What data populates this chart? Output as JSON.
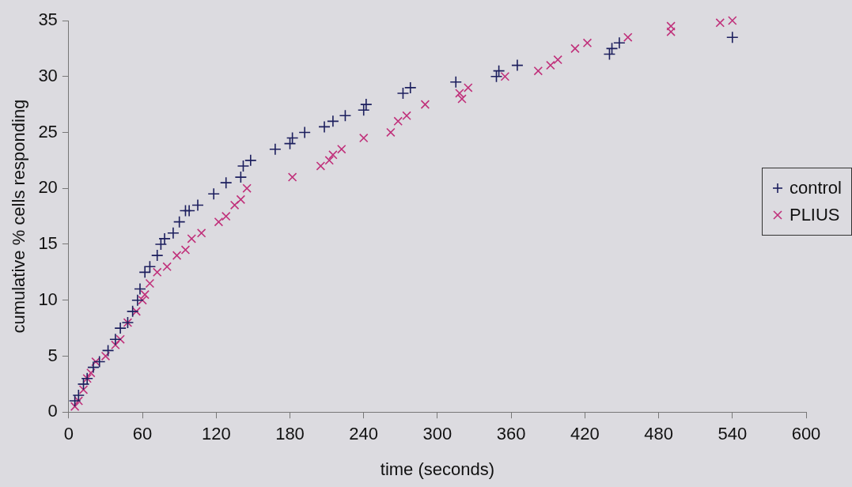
{
  "chart_data": {
    "type": "scatter",
    "xlabel": "time (seconds)",
    "ylabel": "cumulative % cells responding",
    "xlim": [
      0,
      600
    ],
    "xticks": [
      0,
      60,
      120,
      180,
      240,
      300,
      360,
      420,
      480,
      540,
      600
    ],
    "ylim": [
      0,
      35
    ],
    "yticks": [
      0,
      5,
      10,
      15,
      20,
      25,
      30,
      35
    ],
    "grid": false,
    "legend": "right",
    "series": [
      {
        "name": "control",
        "color": "#1c1f5e",
        "marker": "cross",
        "x": [
          5,
          8,
          12,
          15,
          20,
          25,
          32,
          38,
          42,
          48,
          52,
          56,
          58,
          62,
          66,
          72,
          75,
          78,
          85,
          90,
          95,
          98,
          105,
          118,
          128,
          140,
          142,
          148,
          168,
          180,
          182,
          192,
          208,
          215,
          225,
          240,
          242,
          272,
          278,
          315,
          348,
          350,
          365,
          440,
          442,
          448,
          540
        ],
        "values": [
          1,
          1.5,
          2.5,
          3,
          4,
          4.5,
          5.5,
          6.5,
          7.5,
          8,
          9,
          10,
          11,
          12.5,
          13,
          14,
          15,
          15.5,
          16,
          17,
          18,
          18,
          18.5,
          19.5,
          20.5,
          21,
          22,
          22.5,
          23.5,
          24,
          24.5,
          25,
          25.5,
          26,
          26.5,
          27,
          27.5,
          28.5,
          29,
          29.5,
          30,
          30.5,
          31,
          32,
          32.5,
          33,
          33.5
        ]
      },
      {
        "name": "PLIUS",
        "color": "#c0307a",
        "marker": "x",
        "x": [
          5,
          8,
          12,
          15,
          18,
          22,
          30,
          38,
          42,
          48,
          55,
          60,
          62,
          66,
          72,
          80,
          88,
          95,
          100,
          108,
          122,
          128,
          135,
          140,
          145,
          182,
          205,
          212,
          215,
          222,
          240,
          262,
          268,
          275,
          290,
          318,
          320,
          325,
          355,
          382,
          392,
          398,
          412,
          422,
          455,
          490,
          490,
          530,
          540
        ],
        "values": [
          0.5,
          1,
          2,
          3,
          3.5,
          4.5,
          5,
          6,
          6.5,
          8,
          9,
          10,
          10.5,
          11.5,
          12.5,
          13,
          14,
          14.5,
          15.5,
          16,
          17,
          17.5,
          18.5,
          19,
          20,
          21,
          22,
          22.5,
          23,
          23.5,
          24.5,
          25,
          26,
          26.5,
          27.5,
          28.5,
          28,
          29,
          30,
          30.5,
          31,
          31.5,
          32.5,
          33,
          33.5,
          34,
          34.5,
          34.8,
          35
        ]
      }
    ]
  }
}
